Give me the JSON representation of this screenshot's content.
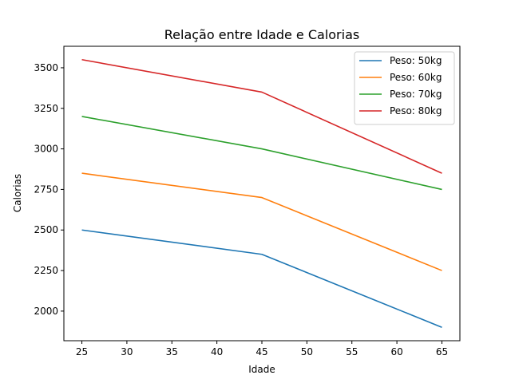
{
  "chart_data": {
    "type": "line",
    "title": "Relação entre Idade e Calorias",
    "xlabel": "Idade",
    "ylabel": "Calorias",
    "x": [
      25,
      45,
      65
    ],
    "series": [
      {
        "name": "Peso: 50kg",
        "values": [
          2500,
          2350,
          1900
        ],
        "color": "#1f77b4"
      },
      {
        "name": "Peso: 60kg",
        "values": [
          2850,
          2700,
          2250
        ],
        "color": "#ff7f0e"
      },
      {
        "name": "Peso: 70kg",
        "values": [
          3200,
          3000,
          2750
        ],
        "color": "#2ca02c"
      },
      {
        "name": "Peso: 80kg",
        "values": [
          3550,
          3350,
          2850
        ],
        "color": "#d62728"
      }
    ],
    "xlim": [
      23,
      67
    ],
    "ylim": [
      1817.5,
      3632.5
    ],
    "xticks": [
      25,
      30,
      35,
      40,
      45,
      50,
      55,
      60,
      65
    ],
    "yticks": [
      2000,
      2250,
      2500,
      2750,
      3000,
      3250,
      3500
    ],
    "grid": false,
    "legend_position": "top-right"
  }
}
